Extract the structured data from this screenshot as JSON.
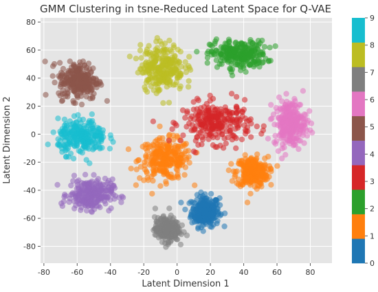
{
  "chart_data": {
    "type": "scatter",
    "title": "GMM Clustering in tsne-Reduced Latent Space for Q-VAE",
    "xlabel": "Latent Dimension 1",
    "ylabel": "Latent Dimension 2",
    "xlim": [
      -82,
      93
    ],
    "ylim": [
      -92,
      83
    ],
    "xticks": [
      -80,
      -60,
      -40,
      -20,
      0,
      20,
      40,
      60,
      80
    ],
    "yticks": [
      -80,
      -60,
      -40,
      -20,
      0,
      20,
      40,
      60,
      80
    ],
    "grid": true,
    "background": "#e5e5e5",
    "colorbar": {
      "ticks": [
        0,
        1,
        2,
        3,
        4,
        5,
        6,
        7,
        8,
        9
      ],
      "colors": [
        "#1f77b4",
        "#ff7f0e",
        "#2ca02c",
        "#d62728",
        "#9467bd",
        "#8c564b",
        "#e377c2",
        "#7f7f7f",
        "#bcbd22",
        "#17becf"
      ]
    },
    "clusters": [
      {
        "label": 0,
        "center": [
          17,
          -55
        ],
        "spread": [
          7,
          9
        ]
      },
      {
        "label": 1,
        "center": [
          -7,
          -18
        ],
        "spread": [
          13,
          12
        ]
      },
      {
        "label": 1,
        "center": [
          45,
          -27
        ],
        "spread": [
          8,
          9
        ]
      },
      {
        "label": 2,
        "center": [
          37,
          57
        ],
        "spread": [
          14,
          8
        ]
      },
      {
        "label": 3,
        "center": [
          24,
          8
        ],
        "spread": [
          17,
          12
        ]
      },
      {
        "label": 4,
        "center": [
          -52,
          -43
        ],
        "spread": [
          11,
          9
        ]
      },
      {
        "label": 5,
        "center": [
          -59,
          38
        ],
        "spread": [
          10,
          11
        ]
      },
      {
        "label": 6,
        "center": [
          68,
          8
        ],
        "spread": [
          8,
          14
        ]
      },
      {
        "label": 7,
        "center": [
          -6,
          -68
        ],
        "spread": [
          6,
          7
        ]
      },
      {
        "label": 8,
        "center": [
          -9,
          48
        ],
        "spread": [
          11,
          14
        ]
      },
      {
        "label": 9,
        "center": [
          -57,
          -2
        ],
        "spread": [
          12,
          10
        ]
      }
    ]
  }
}
